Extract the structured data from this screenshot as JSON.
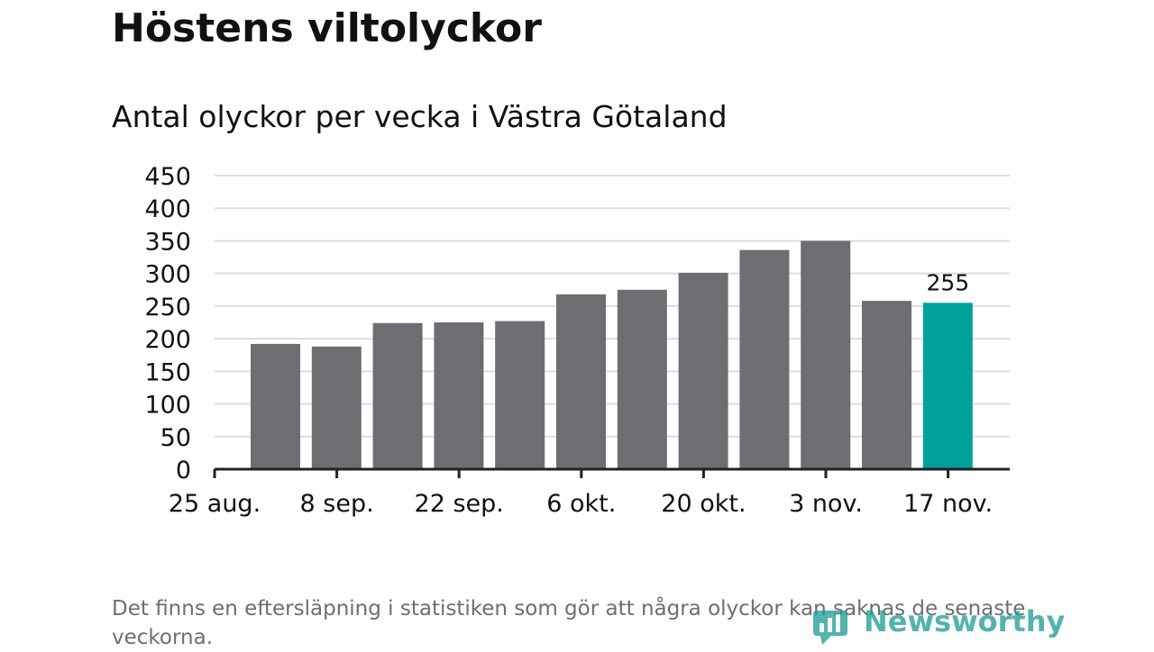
{
  "header": {
    "title": "Höstens viltolyckor",
    "subtitle": "Antal olyckor per vecka i Västra Götaland"
  },
  "footnote": "Det finns en eftersläpning i statistiken som gör att några olyckor kan saknas de senaste veckorna.",
  "logo": {
    "text": "Newsworthy",
    "color": "#1a9a92"
  },
  "colors": {
    "bar": "#6e6d72",
    "highlight": "#00a19a",
    "grid": "#dddddd",
    "axis": "#222222"
  },
  "chart_data": {
    "type": "bar",
    "title": "Antal olyckor per vecka i Västra Götaland",
    "xlabel": "",
    "ylabel": "",
    "ylim": [
      0,
      450
    ],
    "yticks": [
      0,
      50,
      100,
      150,
      200,
      250,
      300,
      350,
      400,
      450
    ],
    "grid": true,
    "xtick_labels": [
      "25 aug.",
      "8 sep.",
      "22 sep.",
      "6 okt.",
      "20 okt.",
      "3 nov.",
      "17 nov."
    ],
    "values": [
      192,
      188,
      224,
      225,
      227,
      268,
      275,
      301,
      336,
      350,
      258,
      255
    ],
    "highlight_index": 11,
    "data_labels": [
      {
        "index": 11,
        "text": "255"
      }
    ]
  }
}
